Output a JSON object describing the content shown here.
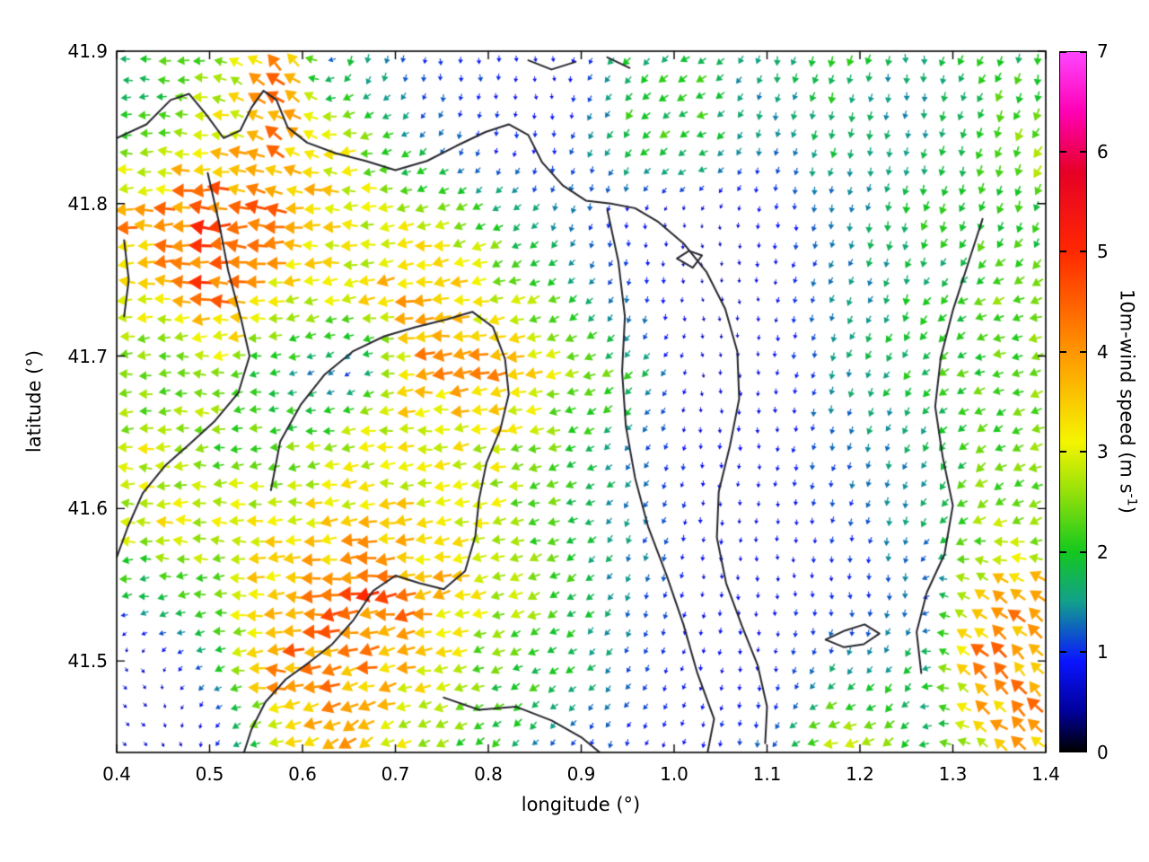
{
  "chart_data": {
    "type": "heatmap",
    "subtype": "wind_vector_field_quiver_over_map",
    "title": "",
    "xlabel": "longitude (°)",
    "ylabel": "latitude (°)",
    "xlim": [
      0.4,
      1.4
    ],
    "ylim": [
      41.44,
      41.9
    ],
    "xticks": [
      0.4,
      0.5,
      0.6,
      0.7,
      0.8,
      0.9,
      1.0,
      1.1,
      1.2,
      1.3,
      1.4
    ],
    "yticks": [
      41.5,
      41.6,
      41.7,
      41.8,
      41.9
    ],
    "grid_on": false,
    "colorbar": {
      "label_prefix": "10m-wind speed (m s",
      "label_sup": "-1",
      "label_suffix": ")",
      "min": 0,
      "max": 7,
      "ticks": [
        0,
        1,
        2,
        3,
        4,
        5,
        6,
        7
      ],
      "stops": [
        [
          0.0,
          "#000000"
        ],
        [
          0.4,
          "#00009a"
        ],
        [
          0.9,
          "#0a14ff"
        ],
        [
          1.5,
          "#12a08c"
        ],
        [
          2.0,
          "#14c81e"
        ],
        [
          2.6,
          "#96e10a"
        ],
        [
          3.1,
          "#f5f500"
        ],
        [
          4.0,
          "#ff9600"
        ],
        [
          5.0,
          "#ff2800"
        ],
        [
          5.8,
          "#e60026"
        ],
        [
          6.4,
          "#ff00b4"
        ],
        [
          7.0,
          "#ff46ff"
        ]
      ]
    },
    "dir_convention": "dir_deg: direction arrows point toward; 0=east, 90=north, 180=west, 270=south",
    "grid_lon": [
      0.425,
      0.5,
      0.575,
      0.65,
      0.725,
      0.8,
      0.875,
      0.95,
      1.025,
      1.1,
      1.175,
      1.25,
      1.325,
      1.4
    ],
    "grid_lat": [
      41.89,
      41.84,
      41.79,
      41.74,
      41.69,
      41.64,
      41.59,
      41.54,
      41.49,
      41.44
    ],
    "speed_ms": [
      [
        1.8,
        2.5,
        4.5,
        2.0,
        1.0,
        1.0,
        0.7,
        1.8,
        2.0,
        1.5,
        2.0,
        1.5,
        2.0,
        2.0
      ],
      [
        2.2,
        3.0,
        4.0,
        2.8,
        1.6,
        1.0,
        0.9,
        2.0,
        2.2,
        1.4,
        1.8,
        1.4,
        2.0,
        2.8
      ],
      [
        4.0,
        5.0,
        4.2,
        3.2,
        2.8,
        2.2,
        1.4,
        0.8,
        0.5,
        0.8,
        1.3,
        1.8,
        2.2,
        2.0
      ],
      [
        3.0,
        4.5,
        3.2,
        3.0,
        3.8,
        3.0,
        2.2,
        1.3,
        0.5,
        0.7,
        1.4,
        1.8,
        2.2,
        2.6
      ],
      [
        2.2,
        2.6,
        1.8,
        1.0,
        3.8,
        4.0,
        2.8,
        2.0,
        0.6,
        0.7,
        1.4,
        2.0,
        2.2,
        2.4
      ],
      [
        3.0,
        2.4,
        2.2,
        3.0,
        3.2,
        3.0,
        2.4,
        1.5,
        0.8,
        0.8,
        1.3,
        1.5,
        2.2,
        2.4
      ],
      [
        3.0,
        3.0,
        3.2,
        3.4,
        3.2,
        2.8,
        2.2,
        1.4,
        0.8,
        0.7,
        1.0,
        1.4,
        2.6,
        2.8
      ],
      [
        1.6,
        2.2,
        4.0,
        4.6,
        4.0,
        3.0,
        2.2,
        1.4,
        0.8,
        0.8,
        0.9,
        1.3,
        3.8,
        4.2
      ],
      [
        0.8,
        1.5,
        4.2,
        4.0,
        3.2,
        2.2,
        2.0,
        1.2,
        0.8,
        0.8,
        1.6,
        1.8,
        4.0,
        4.0
      ],
      [
        0.6,
        0.8,
        3.0,
        3.6,
        2.6,
        2.0,
        1.2,
        1.0,
        0.8,
        1.2,
        3.8,
        2.0,
        3.0,
        3.8
      ]
    ],
    "dir_deg": [
      [
        180,
        180,
        135,
        250,
        270,
        270,
        270,
        230,
        210,
        260,
        250,
        270,
        240,
        260
      ],
      [
        180,
        170,
        150,
        185,
        225,
        270,
        270,
        230,
        200,
        260,
        255,
        265,
        250,
        240
      ],
      [
        180,
        180,
        175,
        180,
        190,
        210,
        250,
        270,
        280,
        270,
        260,
        255,
        250,
        255
      ],
      [
        180,
        180,
        185,
        190,
        185,
        195,
        210,
        260,
        280,
        270,
        240,
        250,
        210,
        200
      ],
      [
        185,
        180,
        200,
        230,
        185,
        185,
        190,
        220,
        280,
        270,
        255,
        230,
        200,
        195
      ],
      [
        180,
        185,
        190,
        185,
        185,
        190,
        200,
        230,
        270,
        265,
        255,
        250,
        220,
        200
      ],
      [
        175,
        180,
        180,
        185,
        185,
        190,
        200,
        240,
        265,
        270,
        260,
        255,
        210,
        200
      ],
      [
        190,
        185,
        180,
        185,
        190,
        195,
        210,
        250,
        265,
        270,
        280,
        260,
        145,
        140
      ],
      [
        320,
        210,
        180,
        195,
        190,
        200,
        215,
        230,
        260,
        270,
        240,
        230,
        140,
        135
      ],
      [
        320,
        280,
        200,
        210,
        215,
        220,
        240,
        250,
        260,
        255,
        190,
        220,
        150,
        140
      ]
    ],
    "contours": {
      "color": "#26262e",
      "paths": [
        [
          [
            0.4,
            41.843
          ],
          [
            0.432,
            41.852
          ],
          [
            0.458,
            41.868
          ],
          [
            0.478,
            41.872
          ],
          [
            0.497,
            41.858
          ],
          [
            0.515,
            41.843
          ],
          [
            0.533,
            41.848
          ],
          [
            0.545,
            41.863
          ],
          [
            0.558,
            41.874
          ],
          [
            0.572,
            41.868
          ],
          [
            0.584,
            41.85
          ],
          [
            0.605,
            41.84
          ],
          [
            0.636,
            41.833
          ],
          [
            0.668,
            41.828
          ],
          [
            0.7,
            41.822
          ],
          [
            0.734,
            41.828
          ],
          [
            0.766,
            41.838
          ],
          [
            0.797,
            41.847
          ],
          [
            0.822,
            41.852
          ],
          [
            0.843,
            41.845
          ],
          [
            0.858,
            41.827
          ],
          [
            0.88,
            41.812
          ],
          [
            0.905,
            41.802
          ],
          [
            0.932,
            41.8
          ],
          [
            0.958,
            41.797
          ],
          [
            0.983,
            41.788
          ],
          [
            1.01,
            41.774
          ],
          [
            1.035,
            41.755
          ],
          [
            1.055,
            41.731
          ],
          [
            1.068,
            41.703
          ],
          [
            1.07,
            41.672
          ],
          [
            1.06,
            41.641
          ],
          [
            1.048,
            41.611
          ],
          [
            1.046,
            41.581
          ],
          [
            1.056,
            41.551
          ],
          [
            1.073,
            41.523
          ],
          [
            1.09,
            41.497
          ],
          [
            1.1,
            41.47
          ],
          [
            1.098,
            41.446
          ]
        ],
        [
          [
            0.928,
            41.796
          ],
          [
            0.94,
            41.762
          ],
          [
            0.947,
            41.726
          ],
          [
            0.944,
            41.69
          ],
          [
            0.948,
            41.654
          ],
          [
            0.958,
            41.62
          ],
          [
            0.972,
            41.588
          ],
          [
            0.992,
            41.556
          ],
          [
            1.01,
            41.524
          ],
          [
            1.025,
            41.492
          ],
          [
            1.043,
            41.462
          ],
          [
            1.036,
            41.44
          ]
        ],
        [
          [
            0.498,
            41.82
          ],
          [
            0.51,
            41.788
          ],
          [
            0.52,
            41.756
          ],
          [
            0.534,
            41.724
          ],
          [
            0.543,
            41.7
          ],
          [
            0.531,
            41.676
          ],
          [
            0.505,
            41.657
          ],
          [
            0.478,
            41.642
          ],
          [
            0.452,
            41.628
          ],
          [
            0.428,
            41.61
          ],
          [
            0.412,
            41.588
          ],
          [
            0.4,
            41.568
          ]
        ],
        [
          [
            0.566,
            41.612
          ],
          [
            0.576,
            41.644
          ],
          [
            0.598,
            41.668
          ],
          [
            0.624,
            41.688
          ],
          [
            0.654,
            41.703
          ],
          [
            0.688,
            41.713
          ],
          [
            0.722,
            41.719
          ],
          [
            0.755,
            41.724
          ],
          [
            0.783,
            41.729
          ],
          [
            0.805,
            41.719
          ],
          [
            0.818,
            41.698
          ],
          [
            0.822,
            41.675
          ],
          [
            0.813,
            41.652
          ],
          [
            0.798,
            41.63
          ],
          [
            0.79,
            41.606
          ],
          [
            0.786,
            41.582
          ],
          [
            0.775,
            41.559
          ],
          [
            0.752,
            41.547
          ],
          [
            0.726,
            41.551
          ],
          [
            0.7,
            41.556
          ],
          [
            0.676,
            41.546
          ],
          [
            0.655,
            41.527
          ],
          [
            0.632,
            41.511
          ],
          [
            0.607,
            41.499
          ],
          [
            0.582,
            41.488
          ],
          [
            0.56,
            41.473
          ],
          [
            0.545,
            41.455
          ],
          [
            0.537,
            41.44
          ]
        ],
        [
          [
            1.332,
            41.79
          ],
          [
            1.316,
            41.76
          ],
          [
            1.3,
            41.73
          ],
          [
            1.287,
            41.699
          ],
          [
            1.281,
            41.667
          ],
          [
            1.289,
            41.634
          ],
          [
            1.3,
            41.602
          ],
          [
            1.291,
            41.57
          ],
          [
            1.272,
            41.545
          ],
          [
            1.261,
            41.519
          ],
          [
            1.266,
            41.492
          ]
        ],
        [
          [
            1.003,
            41.764
          ],
          [
            1.016,
            41.769
          ],
          [
            1.03,
            41.766
          ],
          [
            1.02,
            41.758
          ],
          [
            1.003,
            41.764
          ]
        ],
        [
          [
            1.163,
            41.514
          ],
          [
            1.184,
            41.52
          ],
          [
            1.205,
            41.524
          ],
          [
            1.221,
            41.518
          ],
          [
            1.204,
            41.511
          ],
          [
            1.183,
            41.509
          ],
          [
            1.163,
            41.514
          ]
        ],
        [
          [
            0.843,
            41.894
          ],
          [
            0.868,
            41.888
          ],
          [
            0.894,
            41.893
          ]
        ],
        [
          [
            0.928,
            41.896
          ],
          [
            0.952,
            41.889
          ]
        ],
        [
          [
            0.408,
            41.776
          ],
          [
            0.413,
            41.75
          ],
          [
            0.408,
            41.726
          ]
        ],
        [
          [
            0.752,
            41.476
          ],
          [
            0.79,
            41.468
          ],
          [
            0.83,
            41.47
          ],
          [
            0.868,
            41.461
          ],
          [
            0.9,
            41.45
          ],
          [
            0.92,
            41.44
          ]
        ]
      ]
    }
  }
}
